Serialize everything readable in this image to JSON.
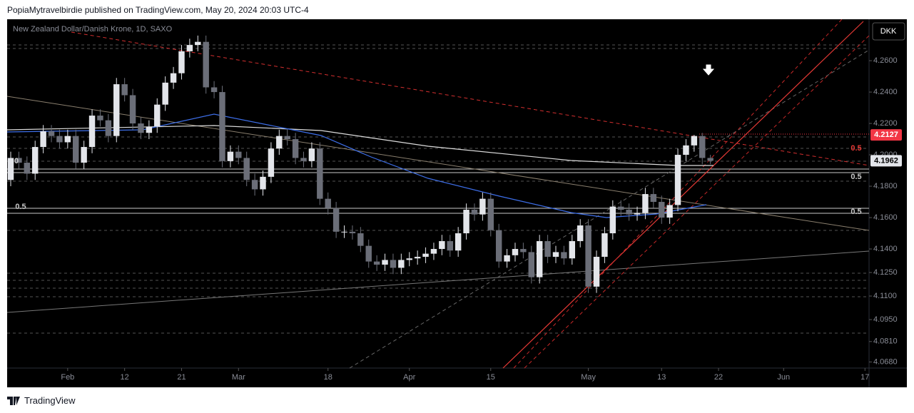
{
  "header": {
    "published": "PopiaMytravelbirdie published on TradingView.com, May 20, 2024 20:03 UTC-4"
  },
  "footer": {
    "brand": "TradingView"
  },
  "toolbar": {
    "currency": "DKK"
  },
  "chart_data": {
    "type": "candlestick",
    "title": "New Zealand Dollar/Danish Krone, 1D, SAXO",
    "up_color": "#e3e5ea",
    "down_color": "#6b6e78",
    "open": [
      4.184,
      4.198,
      4.195,
      4.188,
      4.205,
      4.215,
      4.212,
      4.208,
      4.212,
      4.195,
      4.205,
      4.225,
      4.222,
      4.212,
      4.245,
      4.238,
      4.22,
      4.214,
      4.218,
      4.232,
      4.246,
      4.252,
      4.266,
      4.27,
      4.272,
      4.243,
      4.24,
      4.196,
      4.202,
      4.198,
      4.184,
      4.178,
      4.186,
      4.204,
      4.212,
      4.21,
      4.198,
      4.196,
      4.204,
      4.172,
      4.166,
      4.151,
      4.151,
      4.15,
      4.142,
      4.132,
      4.13,
      4.133,
      4.128,
      4.133,
      4.134,
      4.135,
      4.137,
      4.14,
      4.145,
      4.139,
      4.15,
      4.165,
      4.162,
      4.172,
      4.152,
      4.132,
      4.136,
      4.14,
      4.138,
      4.122,
      4.145,
      4.135,
      4.138,
      4.134,
      4.145,
      4.155,
      4.116,
      4.135,
      4.15,
      4.167,
      4.165,
      4.162,
      4.163,
      4.175,
      4.17,
      4.16,
      4.168,
      4.2,
      4.206,
      4.212,
      4.198
    ],
    "high": [
      4.202,
      4.202,
      4.199,
      4.209,
      4.219,
      4.219,
      4.216,
      4.216,
      4.216,
      4.209,
      4.229,
      4.229,
      4.226,
      4.249,
      4.249,
      4.242,
      4.224,
      4.222,
      4.236,
      4.25,
      4.256,
      4.27,
      4.274,
      4.276,
      4.276,
      4.247,
      4.244,
      4.206,
      4.206,
      4.202,
      4.188,
      4.19,
      4.208,
      4.216,
      4.216,
      4.214,
      4.202,
      4.208,
      4.208,
      4.176,
      4.17,
      4.155,
      4.155,
      4.154,
      4.146,
      4.136,
      4.137,
      4.137,
      4.137,
      4.138,
      4.139,
      4.141,
      4.144,
      4.149,
      4.149,
      4.154,
      4.169,
      4.169,
      4.176,
      4.176,
      4.156,
      4.14,
      4.144,
      4.144,
      4.142,
      4.149,
      4.149,
      4.142,
      4.142,
      4.149,
      4.159,
      4.159,
      4.139,
      4.154,
      4.171,
      4.171,
      4.169,
      4.167,
      4.179,
      4.179,
      4.174,
      4.172,
      4.204,
      4.21,
      4.2127,
      4.214,
      4.2
    ],
    "low": [
      4.18,
      4.191,
      4.184,
      4.184,
      4.201,
      4.208,
      4.204,
      4.204,
      4.191,
      4.191,
      4.201,
      4.218,
      4.208,
      4.208,
      4.234,
      4.216,
      4.21,
      4.21,
      4.214,
      4.228,
      4.242,
      4.248,
      4.262,
      4.266,
      4.239,
      4.236,
      4.192,
      4.192,
      4.194,
      4.18,
      4.174,
      4.174,
      4.182,
      4.2,
      4.206,
      4.194,
      4.192,
      4.192,
      4.168,
      4.162,
      4.147,
      4.147,
      4.146,
      4.138,
      4.128,
      4.126,
      4.126,
      4.124,
      4.124,
      4.129,
      4.13,
      4.131,
      4.133,
      4.136,
      4.135,
      4.135,
      4.146,
      4.158,
      4.158,
      4.148,
      4.128,
      4.128,
      4.132,
      4.134,
      4.118,
      4.118,
      4.131,
      4.131,
      4.13,
      4.13,
      4.141,
      4.112,
      4.112,
      4.131,
      4.146,
      4.161,
      4.158,
      4.158,
      4.159,
      4.166,
      4.156,
      4.156,
      4.164,
      4.196,
      4.202,
      4.194,
      4.194
    ],
    "close": [
      4.198,
      4.195,
      4.188,
      4.205,
      4.215,
      4.212,
      4.208,
      4.212,
      4.195,
      4.205,
      4.225,
      4.222,
      4.212,
      4.245,
      4.238,
      4.22,
      4.214,
      4.218,
      4.232,
      4.246,
      4.252,
      4.266,
      4.27,
      4.272,
      4.243,
      4.24,
      4.196,
      4.202,
      4.198,
      4.184,
      4.178,
      4.186,
      4.204,
      4.212,
      4.21,
      4.198,
      4.196,
      4.204,
      4.172,
      4.166,
      4.151,
      4.151,
      4.15,
      4.142,
      4.132,
      4.13,
      4.133,
      4.128,
      4.133,
      4.134,
      4.135,
      4.137,
      4.14,
      4.145,
      4.139,
      4.15,
      4.165,
      4.162,
      4.172,
      4.152,
      4.132,
      4.136,
      4.14,
      4.138,
      4.122,
      4.145,
      4.135,
      4.138,
      4.134,
      4.145,
      4.155,
      4.116,
      4.135,
      4.15,
      4.167,
      4.165,
      4.162,
      4.163,
      4.175,
      4.17,
      4.16,
      4.168,
      4.2,
      4.206,
      4.212,
      4.198,
      4.1962
    ],
    "xlim": [
      -0.44,
      105.5
    ],
    "xticks": [
      {
        "value": 7,
        "label": "Feb"
      },
      {
        "value": 14,
        "label": "12"
      },
      {
        "value": 21,
        "label": "21"
      },
      {
        "value": 28,
        "label": "Mar"
      },
      {
        "value": 39,
        "label": "18"
      },
      {
        "value": 49,
        "label": "Apr"
      },
      {
        "value": 59,
        "label": "15"
      },
      {
        "value": 71,
        "label": "May"
      },
      {
        "value": 80,
        "label": "13"
      },
      {
        "value": 87,
        "label": "22"
      },
      {
        "value": 95,
        "label": "Jun"
      },
      {
        "value": 105,
        "label": "17"
      }
    ],
    "ylim": [
      4.0641,
      4.2864
    ],
    "yticks": [
      {
        "value": 4.26,
        "label": "4.2600"
      },
      {
        "value": 4.24,
        "label": "4.2400"
      },
      {
        "value": 4.22,
        "label": "4.2200"
      },
      {
        "value": 4.2,
        "label": "4.2000"
      },
      {
        "value": 4.18,
        "label": "4.1800"
      },
      {
        "value": 4.16,
        "label": "4.1600"
      },
      {
        "value": 4.14,
        "label": "4.1400"
      },
      {
        "value": 4.125,
        "label": "4.1250"
      },
      {
        "value": 4.11,
        "label": "4.1100"
      },
      {
        "value": 4.095,
        "label": "4.0950"
      },
      {
        "value": 4.081,
        "label": "4.0810"
      },
      {
        "value": 4.068,
        "label": "4.0680"
      }
    ],
    "price_labels": [
      {
        "value": 4.2127,
        "label": "4.2127",
        "color": "#f23645"
      },
      {
        "value": 4.1962,
        "label": "4.1962",
        "color": "#e3e5ea"
      }
    ],
    "annotations": [
      "0.5",
      "0.5",
      "0.5",
      "0.5",
      "0"
    ]
  }
}
